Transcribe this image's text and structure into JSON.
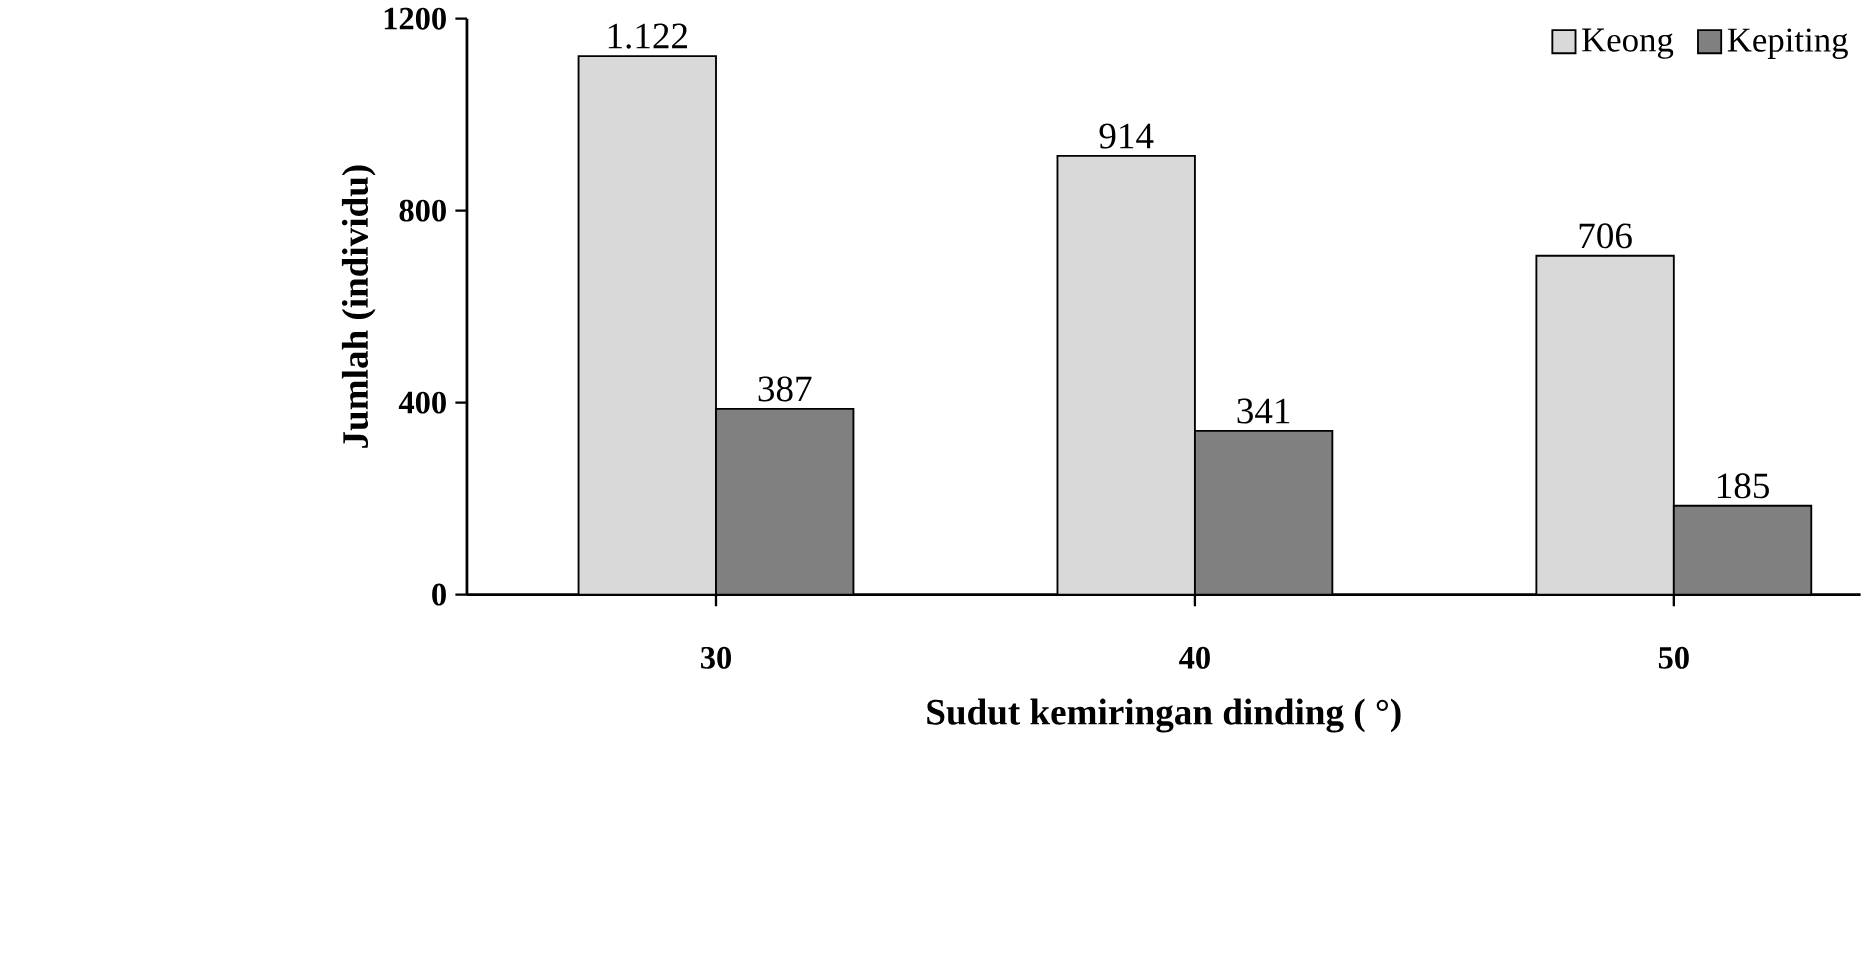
{
  "chart_data": {
    "type": "bar",
    "xlabel": "Sudut kemiringan dinding ( °)",
    "ylabel": "Jumlah (individu)",
    "categories": [
      "30",
      "40",
      "50"
    ],
    "series": [
      {
        "name": "Keong",
        "color": "#d9d9d9",
        "values": [
          1122,
          914,
          706
        ],
        "value_labels": [
          "1.122",
          "914",
          "706"
        ]
      },
      {
        "name": "Kepiting",
        "color": "#808080",
        "values": [
          387,
          341,
          185
        ],
        "value_labels": [
          "387",
          "341",
          "185"
        ]
      }
    ],
    "ylim": [
      0,
      1200
    ],
    "yticks": [
      0,
      400,
      800,
      1200
    ],
    "legend": "top right"
  }
}
